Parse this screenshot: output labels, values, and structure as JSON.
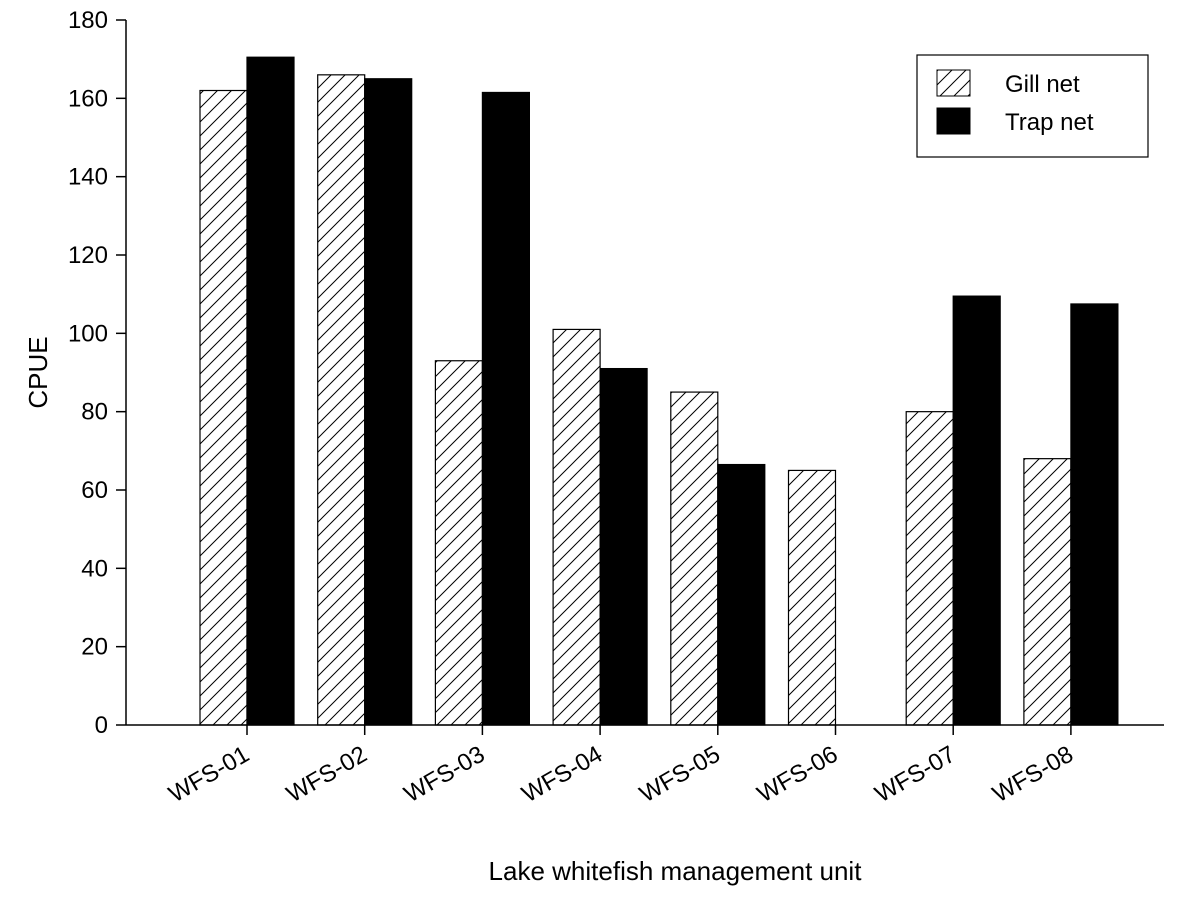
{
  "chart_data": {
    "type": "bar",
    "title": "",
    "xlabel": "Lake whitefish management unit",
    "ylabel": "CPUE",
    "ylim": [
      0,
      180
    ],
    "yticks": [
      0,
      20,
      40,
      60,
      80,
      100,
      120,
      140,
      160,
      180
    ],
    "categories": [
      "WFS-01",
      "WFS-02",
      "WFS-03",
      "WFS-04",
      "WFS-05",
      "WFS-06",
      "WFS-07",
      "WFS-08"
    ],
    "series": [
      {
        "name": "Gill net",
        "values": [
          162,
          166,
          93,
          101,
          85,
          65,
          80,
          68
        ],
        "fill": "hatched"
      },
      {
        "name": "Trap net",
        "values": [
          170.5,
          165,
          161.5,
          91,
          66.5,
          null,
          109.5,
          107.5
        ],
        "fill": "#000000"
      }
    ],
    "legend_position": "top-right",
    "grid": false
  }
}
